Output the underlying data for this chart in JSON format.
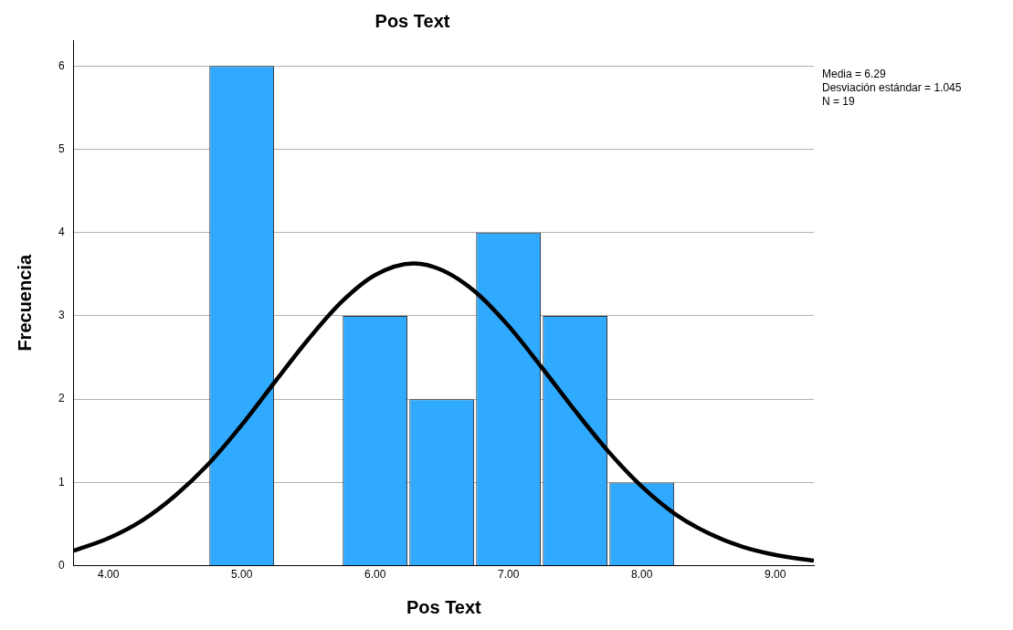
{
  "chart_data": {
    "type": "histogram",
    "title": "Pos Text",
    "xlabel": "Pos Text",
    "ylabel": "Frecuencia",
    "bins": [
      4.75,
      5.25,
      5.75,
      6.25,
      6.75,
      7.25,
      7.75,
      8.25
    ],
    "values": [
      6,
      0,
      3,
      2,
      4,
      3,
      1
    ],
    "color": "#30aaff",
    "series": [
      {
        "type": "line",
        "color": "#000000",
        "x": [
          3.74,
          4.0,
          4.25,
          4.5,
          4.75,
          5.0,
          5.25,
          5.5,
          5.75,
          6.0,
          6.29,
          6.5,
          6.75,
          7.0,
          7.25,
          7.5,
          7.75,
          8.0,
          8.25,
          8.5,
          8.75,
          9.0,
          9.29
        ],
        "values": [
          0.18,
          0.33,
          0.54,
          0.84,
          1.22,
          1.69,
          2.21,
          2.72,
          3.17,
          3.49,
          3.63,
          3.55,
          3.29,
          2.88,
          2.38,
          1.86,
          1.37,
          0.95,
          0.62,
          0.39,
          0.23,
          0.13,
          0.06
        ]
      }
    ],
    "xlim": [
      3.74,
      9.29
    ],
    "xticks": [
      {
        "value": 4,
        "label": "4.00"
      },
      {
        "value": 5,
        "label": "5.00"
      },
      {
        "value": 6,
        "label": "6.00"
      },
      {
        "value": 7,
        "label": "7.00"
      },
      {
        "value": 8,
        "label": "8.00"
      },
      {
        "value": 9,
        "label": "9.00"
      }
    ],
    "ylim": [
      0,
      6.31
    ],
    "yticks": [
      0,
      1,
      2,
      3,
      4,
      5,
      6
    ],
    "grid": "y",
    "legend": false,
    "marker": "none",
    "annotations": [
      "Media = 6.29",
      "Desviación estándar = 1.045",
      "N = 19"
    ]
  }
}
